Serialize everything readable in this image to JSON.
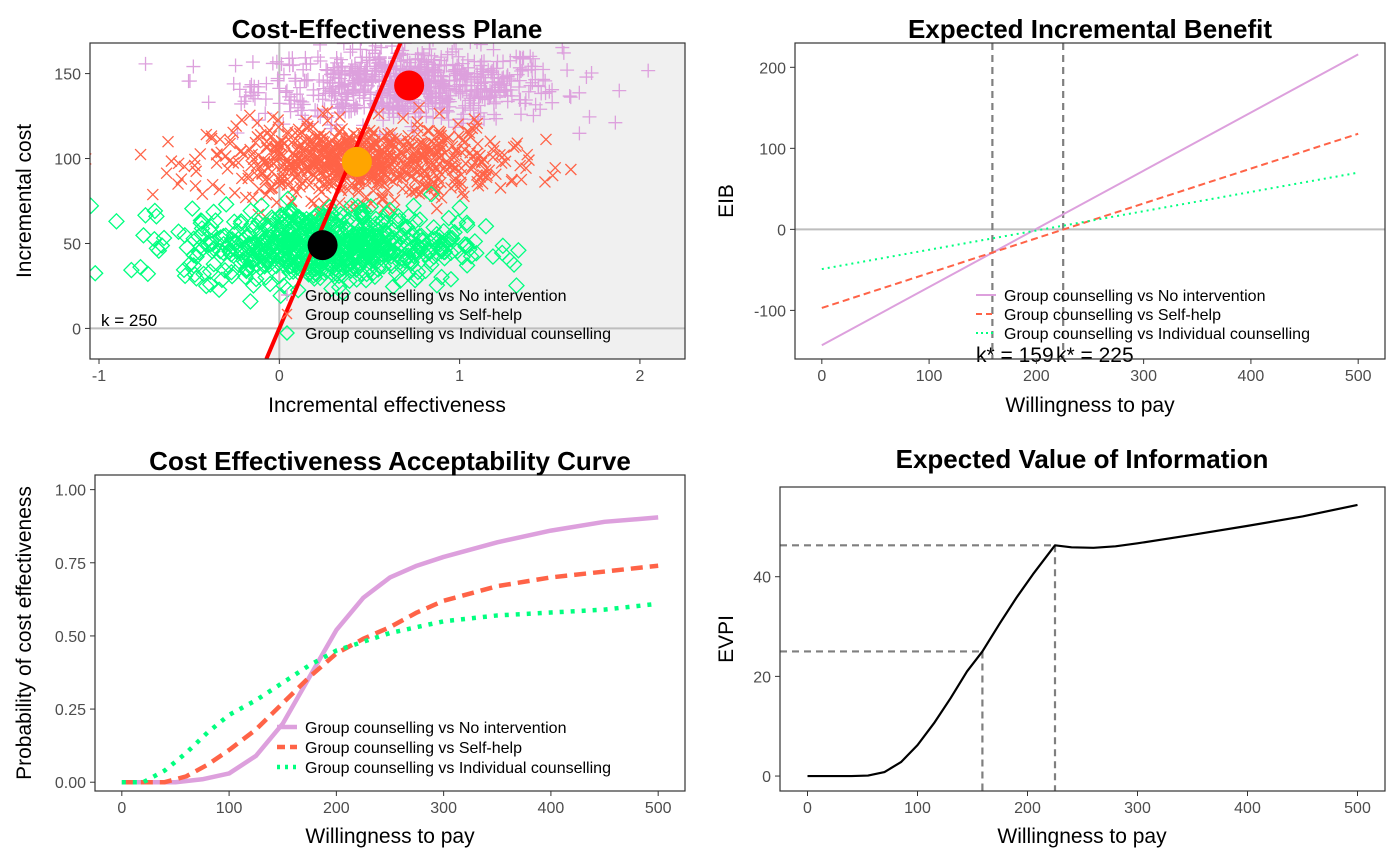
{
  "colors": {
    "no_intervention": "#dda0dd",
    "self_help": "#ff6347",
    "individual": "#00ff7f",
    "wtp_line": "#ff0000",
    "mean_no_intervention": "#ff0000",
    "mean_self_help": "#ffa500",
    "mean_individual": "#000000",
    "reference_line": "#bebebe",
    "guide_dashed": "#7f7f7f",
    "evpi_line": "#000000",
    "panel_shade": "#f0f0f0"
  },
  "legend_labels": [
    "Group counselling vs No intervention",
    "Group counselling vs Self-help",
    "Group counselling vs Individual counselling"
  ],
  "chart_data": [
    {
      "type": "scatter",
      "title": "Cost-Effectiveness Plane",
      "xlabel": "Incremental effectiveness",
      "ylabel": "Incremental cost",
      "xlim": [
        -1.05,
        2.25
      ],
      "ylim": [
        -18,
        168
      ],
      "xticks": [
        -1,
        0,
        1,
        2
      ],
      "xtick_labels": [
        "-1",
        "0",
        "1",
        "2"
      ],
      "yticks": [
        0,
        50,
        100,
        150
      ],
      "ytick_labels": [
        "0",
        "50",
        "100",
        "150"
      ],
      "grid": false,
      "legend_position": "bottom-right",
      "wtp_label": "k = 250",
      "wtp_k": 250,
      "cost_effective_region": "shaded right of wtp line",
      "series": [
        {
          "name": "Group counselling vs No intervention",
          "marker": "plus",
          "cloud": {
            "mean_x": 0.72,
            "sd_x": 0.42,
            "mean_y": 143,
            "sd_y": 11,
            "n": 700
          },
          "mean_point": {
            "x": 0.72,
            "y": 143
          }
        },
        {
          "name": "Group counselling vs Self-help",
          "marker": "cross",
          "cloud": {
            "mean_x": 0.43,
            "sd_x": 0.4,
            "mean_y": 98,
            "sd_y": 11,
            "n": 700
          },
          "mean_point": {
            "x": 0.43,
            "y": 98
          }
        },
        {
          "name": "Group counselling vs Individual counselling",
          "marker": "diamond",
          "cloud": {
            "mean_x": 0.24,
            "sd_x": 0.38,
            "mean_y": 49,
            "sd_y": 11,
            "n": 700
          },
          "mean_point": {
            "x": 0.24,
            "y": 49
          }
        }
      ]
    },
    {
      "type": "line",
      "title": "Expected Incremental Benefit",
      "xlabel": "Willingness to pay",
      "ylabel": "EIB",
      "xlim": [
        -25,
        525
      ],
      "ylim": [
        -160,
        230
      ],
      "xticks": [
        0,
        100,
        200,
        300,
        400,
        500
      ],
      "xtick_labels": [
        "0",
        "100",
        "200",
        "300",
        "400",
        "500"
      ],
      "yticks": [
        -100,
        0,
        100,
        200
      ],
      "ytick_labels": [
        "-100",
        "0",
        "100",
        "200"
      ],
      "grid": false,
      "legend_position": "bottom-right",
      "breakeven_label": "k* = 159",
      "breakeven_label_2": "k* = 225",
      "breakeven_points": [
        159,
        225
      ],
      "series": [
        {
          "name": "Group counselling vs No intervention",
          "style": "solid",
          "x": [
            0,
            500
          ],
          "y": [
            -143,
            216
          ]
        },
        {
          "name": "Group counselling vs Self-help",
          "style": "dashed",
          "x": [
            0,
            500
          ],
          "y": [
            -97,
            118
          ]
        },
        {
          "name": "Group counselling vs Individual counselling",
          "style": "dotted",
          "x": [
            0,
            500
          ],
          "y": [
            -49,
            70
          ]
        }
      ]
    },
    {
      "type": "line",
      "title": "Cost Effectiveness Acceptability Curve",
      "xlabel": "Willingness to pay",
      "ylabel": "Probability of cost effectiveness",
      "xlim": [
        -25,
        525
      ],
      "ylim": [
        -0.03,
        1.05
      ],
      "xticks": [
        0,
        100,
        200,
        300,
        400,
        500
      ],
      "xtick_labels": [
        "0",
        "100",
        "200",
        "300",
        "400",
        "500"
      ],
      "yticks": [
        0,
        0.25,
        0.5,
        0.75,
        1
      ],
      "ytick_labels": [
        "0.00",
        "0.25",
        "0.50",
        "0.75",
        "1.00"
      ],
      "grid": false,
      "legend_position": "bottom-right",
      "series": [
        {
          "name": "Group counselling vs No intervention",
          "style": "solid",
          "x": [
            0,
            50,
            75,
            100,
            125,
            150,
            175,
            200,
            225,
            250,
            275,
            300,
            350,
            400,
            450,
            500
          ],
          "y": [
            0,
            0.0,
            0.01,
            0.03,
            0.09,
            0.2,
            0.36,
            0.52,
            0.63,
            0.7,
            0.74,
            0.77,
            0.82,
            0.86,
            0.89,
            0.905
          ]
        },
        {
          "name": "Group counselling vs Self-help",
          "style": "dashed",
          "x": [
            0,
            40,
            60,
            80,
            100,
            125,
            150,
            175,
            200,
            225,
            250,
            275,
            300,
            350,
            400,
            450,
            500
          ],
          "y": [
            0,
            0.0,
            0.02,
            0.06,
            0.11,
            0.18,
            0.27,
            0.36,
            0.44,
            0.49,
            0.53,
            0.58,
            0.62,
            0.67,
            0.7,
            0.72,
            0.74
          ]
        },
        {
          "name": "Group counselling vs Individual counselling",
          "style": "dotted",
          "x": [
            0,
            20,
            40,
            60,
            80,
            100,
            125,
            150,
            175,
            200,
            225,
            250,
            275,
            300,
            350,
            400,
            450,
            500
          ],
          "y": [
            0,
            0.0,
            0.04,
            0.1,
            0.17,
            0.23,
            0.28,
            0.34,
            0.4,
            0.45,
            0.48,
            0.51,
            0.53,
            0.55,
            0.57,
            0.58,
            0.59,
            0.61
          ]
        }
      ]
    },
    {
      "type": "line",
      "title": "Expected Value of Information",
      "xlabel": "Willingness to pay",
      "ylabel": "EVPI",
      "xlim": [
        -25,
        525
      ],
      "ylim": [
        -3,
        58
      ],
      "xticks": [
        0,
        100,
        200,
        300,
        400,
        500
      ],
      "xtick_labels": [
        "0",
        "100",
        "200",
        "300",
        "400",
        "500"
      ],
      "yticks": [
        0,
        20,
        40
      ],
      "ytick_labels": [
        "0",
        "20",
        "40"
      ],
      "grid": false,
      "reference_points": [
        {
          "x": 159,
          "y": 25
        },
        {
          "x": 225,
          "y": 46.3
        }
      ],
      "series": [
        {
          "style": "solid",
          "x": [
            0,
            20,
            40,
            55,
            70,
            85,
            100,
            115,
            130,
            145,
            159,
            175,
            190,
            205,
            225,
            240,
            260,
            280,
            300,
            350,
            400,
            450,
            500
          ],
          "y": [
            0,
            0,
            0,
            0.1,
            0.8,
            2.8,
            6.2,
            10.6,
            15.6,
            21.0,
            25.0,
            30.7,
            35.8,
            40.5,
            46.3,
            45.9,
            45.8,
            46.1,
            46.7,
            48.4,
            50.2,
            52.1,
            54.4
          ]
        }
      ]
    }
  ]
}
